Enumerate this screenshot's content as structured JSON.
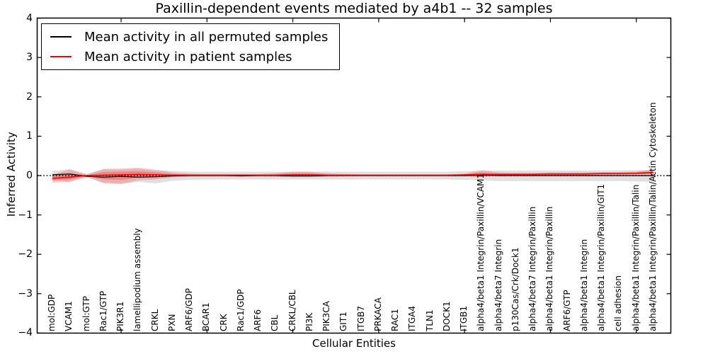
{
  "figure": {
    "title": "Paxillin-dependent events mediated by a4b1 -- 32 samples",
    "xlabel": "Cellular Entities",
    "ylabel": "Inferred Activity"
  },
  "legend": {
    "items": [
      {
        "label": "Mean activity in all permuted samples",
        "color": "#000000"
      },
      {
        "label": "Mean activity in patient samples",
        "color": "#ff0000"
      }
    ]
  },
  "chart_data": {
    "type": "line",
    "title": "Paxillin-dependent events mediated by a4b1 -- 32 samples",
    "xlabel": "Cellular Entities",
    "ylabel": "Inferred Activity",
    "ylim": [
      -4,
      4
    ],
    "yticks": [
      "4",
      "3",
      "2",
      "1",
      "0",
      "−1",
      "−2",
      "−3",
      "−4"
    ],
    "grid": false,
    "zero_line": true,
    "legend_position": "upper left",
    "categories": [
      "mol:GDP",
      "VCAM1",
      "mol:GTP",
      "Rac1/GTP",
      "PIK3R1",
      "lamellipodium assembly",
      "CRKL",
      "PXN",
      "ARF6/GDP",
      "BCAR1",
      "CRK",
      "Rac1/GDP",
      "ARF6",
      "CBL",
      "CRKL/CBL",
      "PI3K",
      "PIK3CA",
      "GIT1",
      "ITGB7",
      "PRKACA",
      "RAC1",
      "ITGA4",
      "TLN1",
      "DOCK1",
      "ITGB1",
      "alpha4/beta1 Integrin/Paxillin/VCAM1",
      "alpha4/beta7 Integrin",
      "p130Cas/Crk/Dock1",
      "alpha4/beta7 Integrin/Paxillin",
      "alpha4/beta1 Integrin/Paxillin",
      "ARF6/GTP",
      "alpha4/beta1 Integrin",
      "alpha4/beta1 Integrin/Paxillin/GIT1",
      "cell adhesion",
      "alpha4/beta1 Integrin/Paxillin/Talin",
      "alpha4/beta1 Integrin/Paxillin/Talin/Actin Cytoskeleton"
    ],
    "series": [
      {
        "name": "Mean activity in all permuted samples",
        "color": "#000000",
        "values": [
          0.02,
          0.04,
          -0.02,
          -0.04,
          -0.02,
          -0.04,
          -0.03,
          -0.01,
          0,
          0,
          0,
          -0.01,
          0,
          0,
          -0.01,
          -0.01,
          0,
          0,
          0,
          0,
          0,
          0,
          0,
          0,
          0,
          0.01,
          0,
          0,
          0,
          0,
          0,
          0,
          0,
          0,
          0,
          0
        ]
      },
      {
        "name": "Mean activity in patient samples",
        "color": "#ff0000",
        "values": [
          -0.07,
          -0.04,
          0,
          0.01,
          0.02,
          0.03,
          0.02,
          0.01,
          0.01,
          0.01,
          0.01,
          0.01,
          0.01,
          0.01,
          0.02,
          0.02,
          0.01,
          0.01,
          0.01,
          0.01,
          0.01,
          0.01,
          0.01,
          0.01,
          0.02,
          0.03,
          0.03,
          0.03,
          0.03,
          0.04,
          0.04,
          0.04,
          0.05,
          0.05,
          0.06,
          0.08
        ]
      }
    ],
    "bands": [
      {
        "name": "permuted samples range",
        "color": "rgba(0,0,0,0.12)",
        "hi": [
          0.12,
          0.16,
          0.05,
          0.16,
          0.15,
          0.18,
          0.13,
          0.12,
          0.1,
          0.1,
          0.1,
          0.1,
          0.1,
          0.1,
          0.1,
          0.1,
          0.1,
          0.1,
          0.1,
          0.1,
          0.1,
          0.1,
          0.1,
          0.1,
          0.11,
          0.12,
          0.13,
          0.13,
          0.13,
          0.13,
          0.13,
          0.13,
          0.13,
          0.13,
          0.14,
          0.15
        ],
        "lo": [
          -0.12,
          -0.16,
          -0.05,
          -0.18,
          -0.2,
          -0.16,
          -0.2,
          -0.13,
          -0.11,
          -0.1,
          -0.1,
          -0.1,
          -0.1,
          -0.1,
          -0.1,
          -0.1,
          -0.1,
          -0.1,
          -0.1,
          -0.1,
          -0.1,
          -0.1,
          -0.1,
          -0.1,
          -0.11,
          -0.12,
          -0.14,
          -0.14,
          -0.14,
          -0.14,
          -0.14,
          -0.14,
          -0.14,
          -0.14,
          -0.15,
          -0.16
        ]
      },
      {
        "name": "patient samples range (outer)",
        "color": "rgba(255,0,0,0.20)",
        "hi": [
          0.02,
          0.16,
          0.02,
          0.17,
          0.18,
          0.2,
          0.15,
          0.08,
          0.05,
          0.04,
          0.04,
          0.04,
          0.04,
          0.06,
          0.1,
          0.1,
          0.06,
          0.04,
          0.03,
          0.03,
          0.03,
          0.03,
          0.03,
          0.03,
          0.05,
          0.14,
          0.08,
          0.07,
          0.07,
          0.08,
          0.08,
          0.08,
          0.09,
          0.09,
          0.1,
          0.15
        ],
        "lo": [
          -0.18,
          -0.16,
          -0.02,
          -0.2,
          -0.22,
          -0.12,
          -0.1,
          -0.05,
          -0.03,
          -0.02,
          -0.02,
          -0.02,
          -0.02,
          -0.03,
          -0.04,
          -0.04,
          -0.03,
          -0.02,
          -0.01,
          -0.01,
          -0.01,
          -0.01,
          -0.01,
          -0.01,
          -0.01,
          -0.04,
          0.0,
          0.0,
          0.0,
          0.0,
          0.01,
          0.01,
          0.01,
          0.02,
          0.02,
          0.03
        ],
        "lo_note": ""
      },
      {
        "name": "patient samples range (inner)",
        "color": "rgba(255,0,0,0.25)",
        "hi": [
          -0.02,
          0.06,
          0.01,
          0.09,
          0.1,
          0.11,
          0.08,
          0.04,
          0.03,
          0.02,
          0.02,
          0.02,
          0.02,
          0.03,
          0.06,
          0.06,
          0.03,
          0.02,
          0.02,
          0.02,
          0.02,
          0.02,
          0.02,
          0.02,
          0.03,
          0.08,
          0.05,
          0.05,
          0.05,
          0.06,
          0.06,
          0.06,
          0.07,
          0.07,
          0.08,
          0.11
        ],
        "lo": [
          -0.12,
          -0.1,
          -0.01,
          -0.1,
          -0.11,
          -0.05,
          -0.05,
          -0.02,
          -0.01,
          0,
          0,
          0,
          0,
          -0.01,
          -0.02,
          -0.02,
          -0.01,
          0,
          0,
          0,
          0,
          0,
          0,
          0,
          0,
          -0.02,
          0.01,
          0.01,
          0.01,
          0.02,
          0.02,
          0.02,
          0.03,
          0.03,
          0.04,
          0.05
        ]
      }
    ]
  }
}
